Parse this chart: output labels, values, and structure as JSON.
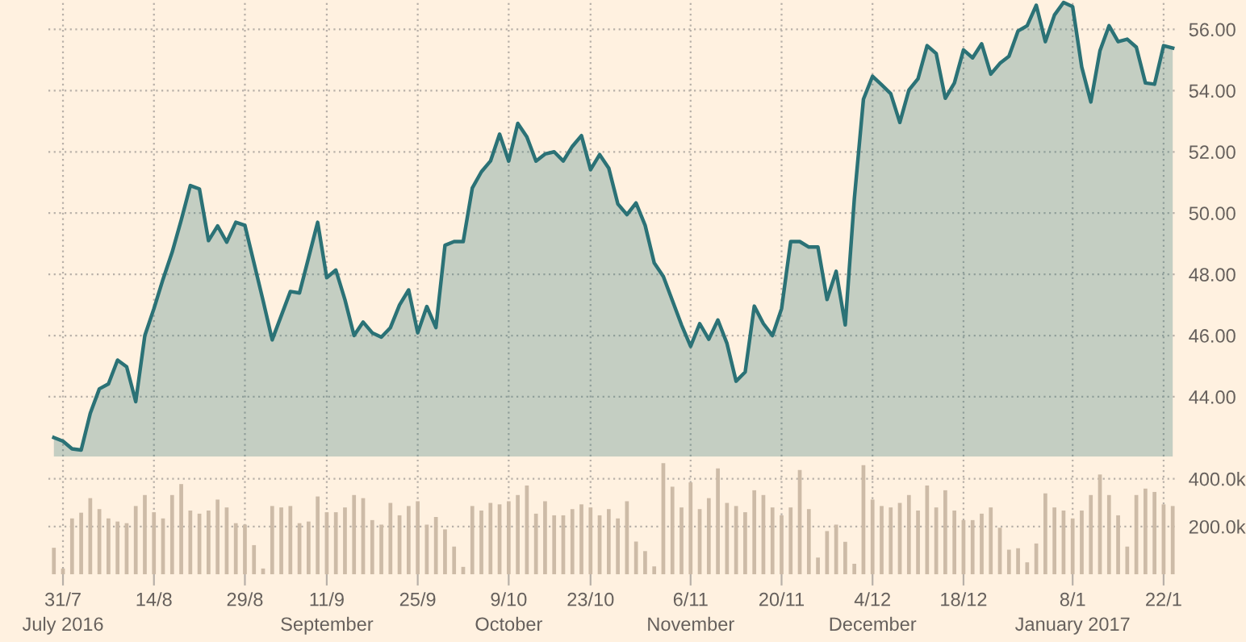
{
  "chart_data": [
    {
      "type": "area",
      "categories": [
        null,
        null,
        null,
        null,
        null,
        null,
        null,
        null,
        null,
        null,
        null,
        null,
        null,
        null,
        null,
        null,
        null,
        null,
        null,
        null,
        null,
        null,
        null,
        null,
        null,
        null,
        null,
        null,
        null,
        null,
        null,
        null,
        null,
        null,
        null,
        null,
        null,
        null,
        null,
        null,
        null,
        null,
        null,
        null,
        null,
        null,
        null,
        null,
        null,
        null,
        null,
        null,
        null,
        null,
        null,
        null,
        null,
        null,
        null,
        null,
        null,
        null,
        null,
        null,
        null,
        null,
        null,
        null,
        null,
        null,
        null,
        null,
        null,
        null,
        null,
        null,
        null,
        null,
        null,
        null,
        null,
        null,
        null,
        null,
        null,
        null,
        null,
        null,
        null,
        null,
        null,
        null,
        null,
        null,
        null,
        null,
        null,
        null,
        null,
        null,
        null,
        null,
        null,
        null,
        null,
        null,
        null,
        null,
        null,
        null,
        null,
        null,
        null,
        null,
        null,
        null,
        null,
        null,
        null,
        null,
        null,
        null,
        null,
        null
      ],
      "series": [
        {
          "color": "#2b7276",
          "values": [
            42.67,
            42.55,
            42.3,
            42.26,
            43.46,
            44.26,
            44.42,
            45.2,
            44.98,
            43.84,
            46.0,
            46.88,
            47.84,
            48.72,
            49.77,
            50.9,
            50.79,
            49.1,
            49.58,
            49.05,
            49.7,
            49.6,
            48.37,
            47.14,
            45.86,
            46.65,
            47.44,
            47.39,
            48.54,
            49.7,
            47.89,
            48.14,
            47.17,
            46.0,
            46.44,
            46.09,
            45.95,
            46.26,
            47.0,
            47.49,
            46.09,
            46.95,
            46.26,
            48.95,
            49.07,
            49.07,
            50.82,
            51.35,
            51.7,
            52.58,
            51.7,
            52.93,
            52.49,
            51.7,
            51.93,
            52.0,
            51.7,
            52.18,
            52.53,
            51.42,
            51.91,
            51.47,
            50.3,
            49.95,
            50.33,
            49.6,
            48.37,
            47.93,
            47.14,
            46.35,
            45.65,
            46.39,
            45.88,
            46.51,
            45.74,
            44.51,
            44.81,
            46.96,
            46.39,
            46.0,
            46.88,
            49.07,
            49.07,
            48.89,
            48.89,
            47.18,
            48.1,
            46.35,
            50.47,
            53.72,
            54.47,
            54.19,
            53.9,
            52.96,
            54.02,
            54.39,
            55.47,
            55.21,
            53.75,
            54.25,
            55.33,
            55.07,
            55.53,
            54.54,
            54.89,
            55.12,
            55.95,
            56.12,
            56.79,
            55.6,
            56.47,
            56.88,
            56.74,
            54.77,
            53.63,
            55.3,
            56.12,
            55.6,
            55.68,
            55.42,
            54.25,
            54.21,
            55.47,
            55.39
          ]
        }
      ],
      "ylim": [
        42.05,
        56.96
      ],
      "yticks": [
        {
          "value": 44,
          "label": "44.00"
        },
        {
          "value": 46,
          "label": "46.00"
        },
        {
          "value": 48,
          "label": "48.00"
        },
        {
          "value": 50,
          "label": "50.00"
        },
        {
          "value": 52,
          "label": "52.00"
        },
        {
          "value": 54,
          "label": "54.00"
        },
        {
          "value": 56,
          "label": "56.00"
        }
      ],
      "tick_labels": "y",
      "grid": true,
      "marker": "none",
      "line_style": "solid"
    },
    {
      "type": "bar",
      "categories": [
        null,
        "31/7\nJuly 2016",
        null,
        null,
        null,
        null,
        null,
        null,
        null,
        null,
        null,
        "14/8",
        null,
        null,
        null,
        null,
        null,
        null,
        null,
        null,
        null,
        "29/8",
        null,
        null,
        null,
        null,
        null,
        null,
        null,
        null,
        "11/9\nSeptember",
        null,
        null,
        null,
        null,
        null,
        null,
        null,
        null,
        null,
        "25/9",
        null,
        null,
        null,
        null,
        null,
        null,
        null,
        null,
        null,
        "9/10\nOctober",
        null,
        null,
        null,
        null,
        null,
        null,
        null,
        null,
        "23/10",
        null,
        null,
        null,
        null,
        null,
        null,
        null,
        null,
        null,
        null,
        "6/11\nNovember",
        null,
        null,
        null,
        null,
        null,
        null,
        null,
        null,
        null,
        "20/11",
        null,
        null,
        null,
        null,
        null,
        null,
        null,
        null,
        null,
        "4/12\nDecember",
        null,
        null,
        null,
        null,
        null,
        null,
        null,
        null,
        null,
        "18/12",
        null,
        null,
        null,
        null,
        null,
        null,
        null,
        null,
        null,
        null,
        null,
        "8/1\nJanuary 2017",
        null,
        null,
        null,
        null,
        null,
        null,
        null,
        null,
        null,
        "22/1",
        null
      ],
      "series": [
        {
          "color": "#cdbba7",
          "values": [
            111000,
            24000,
            234000,
            258000,
            319000,
            273000,
            234000,
            221000,
            214000,
            286000,
            332000,
            260000,
            234000,
            332000,
            378000,
            267000,
            254000,
            267000,
            313000,
            280000,
            214000,
            208000,
            122000,
            24000,
            286000,
            280000,
            286000,
            214000,
            221000,
            326000,
            260000,
            260000,
            280000,
            332000,
            319000,
            227000,
            208000,
            299000,
            247000,
            286000,
            306000,
            208000,
            240000,
            188000,
            116000,
            31000,
            286000,
            267000,
            299000,
            293000,
            306000,
            332000,
            372000,
            254000,
            306000,
            247000,
            247000,
            273000,
            293000,
            280000,
            247000,
            273000,
            234000,
            306000,
            137000,
            97000,
            33000,
            466000,
            367000,
            280000,
            385000,
            273000,
            319000,
            444000,
            299000,
            286000,
            260000,
            352000,
            332000,
            280000,
            247000,
            280000,
            437000,
            273000,
            70000,
            181000,
            208000,
            136000,
            44000,
            457000,
            313000,
            286000,
            280000,
            299000,
            332000,
            267000,
            372000,
            280000,
            352000,
            267000,
            227000,
            227000,
            254000,
            280000,
            195000,
            103000,
            109000,
            50000,
            129000,
            339000,
            280000,
            267000,
            234000,
            267000,
            332000,
            418000,
            332000,
            247000,
            116000,
            332000,
            359000,
            345000,
            293000,
            286000
          ]
        }
      ],
      "ylim": [
        0,
        480000
      ],
      "yticks": [
        {
          "value": 200000,
          "label": "200.0k"
        },
        {
          "value": 400000,
          "label": "400.0k"
        }
      ],
      "grid": true
    }
  ]
}
